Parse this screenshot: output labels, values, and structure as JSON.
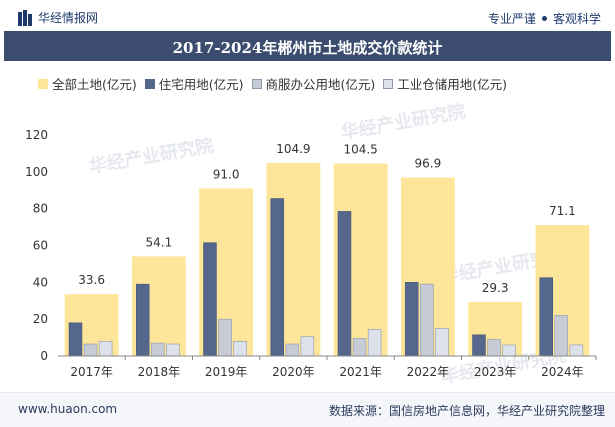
{
  "header": {
    "brand": "华经情报网",
    "tagline_left": "专业严谨",
    "tagline_right": "客观科学"
  },
  "title": "2017-2024年郴州市土地成交价款统计",
  "legend": [
    {
      "label": "全部土地(亿元)",
      "color": "#fde69a"
    },
    {
      "label": "住宅用地(亿元)",
      "color": "#56678d"
    },
    {
      "label": "商服办公用地(亿元)",
      "color": "#c6cbd6"
    },
    {
      "label": "工业仓储用地(亿元)",
      "color": "#dde1ea"
    }
  ],
  "chart_data": {
    "type": "bar",
    "categories": [
      "2017年",
      "2018年",
      "2019年",
      "2020年",
      "2021年",
      "2022年",
      "2023年",
      "2024年"
    ],
    "series": [
      {
        "name": "全部土地(亿元)",
        "values": [
          33.6,
          54.1,
          91.0,
          104.9,
          104.5,
          96.9,
          29.3,
          71.1
        ],
        "color": "#fde69a"
      },
      {
        "name": "住宅用地(亿元)",
        "values": [
          18,
          39,
          61.5,
          85.5,
          78.5,
          40,
          11.5,
          42.5
        ],
        "color": "#56678d"
      },
      {
        "name": "商服办公用地(亿元)",
        "values": [
          6.5,
          7,
          20,
          6.5,
          9.5,
          39,
          9,
          22
        ],
        "color": "#c6cbd6"
      },
      {
        "name": "工业仓储用地(亿元)",
        "values": [
          8,
          6.5,
          8,
          10.5,
          14.5,
          15,
          6,
          6
        ],
        "color": "#dde1ea"
      }
    ],
    "data_labels": [
      "33.6",
      "54.1",
      "91.0",
      "104.9",
      "104.5",
      "96.9",
      "29.3",
      "71.1"
    ],
    "yticks": [
      "0",
      "20",
      "40",
      "60",
      "80",
      "100",
      "120"
    ],
    "ylim": [
      0,
      120
    ],
    "xlabel": "",
    "ylabel": ""
  },
  "watermarks": [
    "华经产业研究院",
    "www.huaon.com"
  ],
  "footer": {
    "left": "www.huaon.com",
    "right": "数据来源：国信房地产信息网，华经产业研究院整理"
  }
}
